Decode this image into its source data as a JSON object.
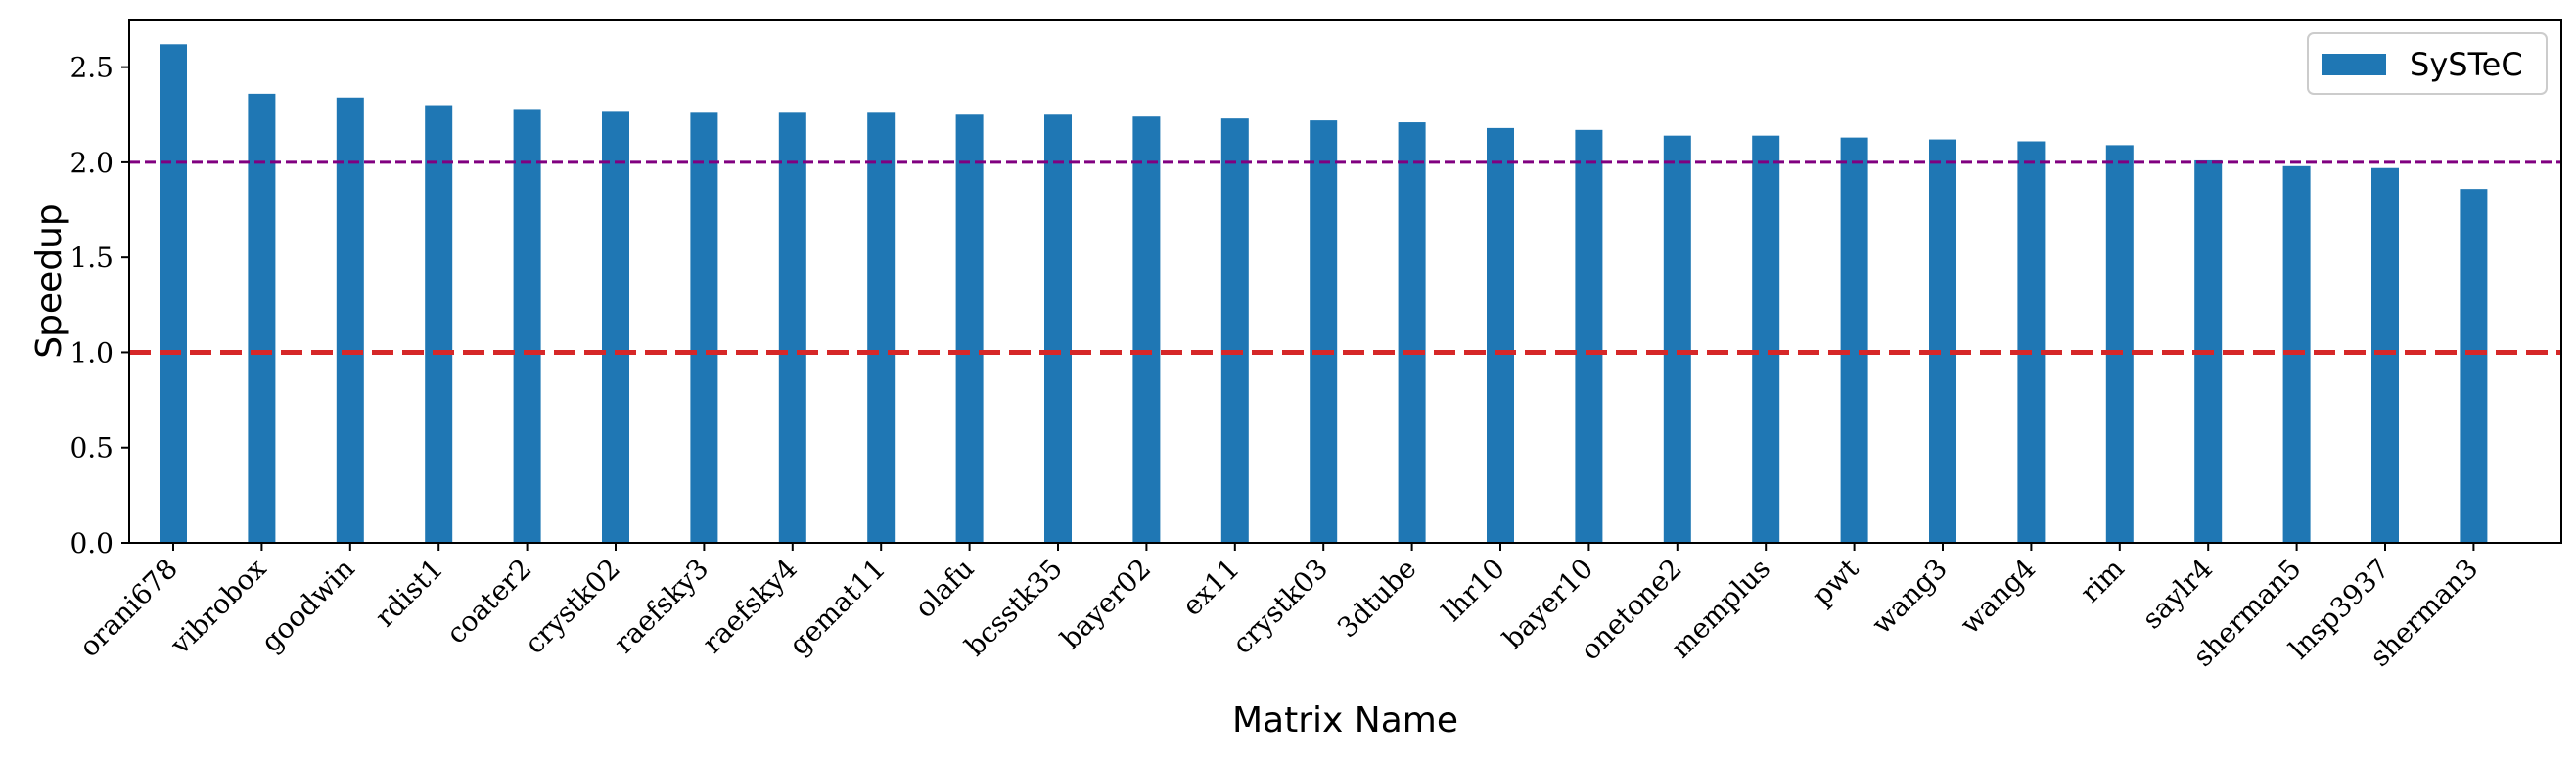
{
  "chart_data": {
    "type": "bar",
    "xlabel": "Matrix Name",
    "ylabel": "Speedup",
    "ylim": [
      0,
      2.75
    ],
    "yticks": [
      "0.0",
      "0.5",
      "1.0",
      "1.5",
      "2.0",
      "2.5"
    ],
    "categories": [
      "orani678",
      "vibrobox",
      "goodwin",
      "rdist1",
      "coater2",
      "crystk02",
      "raefsky3",
      "raefsky4",
      "gemat11",
      "olafu",
      "bcsstk35",
      "bayer02",
      "ex11",
      "crystk03",
      "3dtube",
      "lhr10",
      "bayer10",
      "onetone2",
      "memplus",
      "pwt",
      "wang3",
      "wang4",
      "rim",
      "saylr4",
      "sherman5",
      "lnsp3937",
      "sherman3"
    ],
    "series": [
      {
        "name": "SySTeC",
        "color": "#1f77b4",
        "values": [
          2.62,
          2.36,
          2.34,
          2.3,
          2.28,
          2.27,
          2.26,
          2.26,
          2.26,
          2.25,
          2.25,
          2.24,
          2.23,
          2.22,
          2.21,
          2.18,
          2.17,
          2.14,
          2.14,
          2.13,
          2.12,
          2.11,
          2.09,
          2.01,
          1.98,
          1.97,
          1.86
        ]
      }
    ],
    "reference_lines": [
      {
        "y": 1.0,
        "color": "#d62728",
        "style": "dashed"
      },
      {
        "y": 2.0,
        "color": "#800080",
        "style": "dashed"
      }
    ],
    "legend": "top-right",
    "grid": false
  }
}
